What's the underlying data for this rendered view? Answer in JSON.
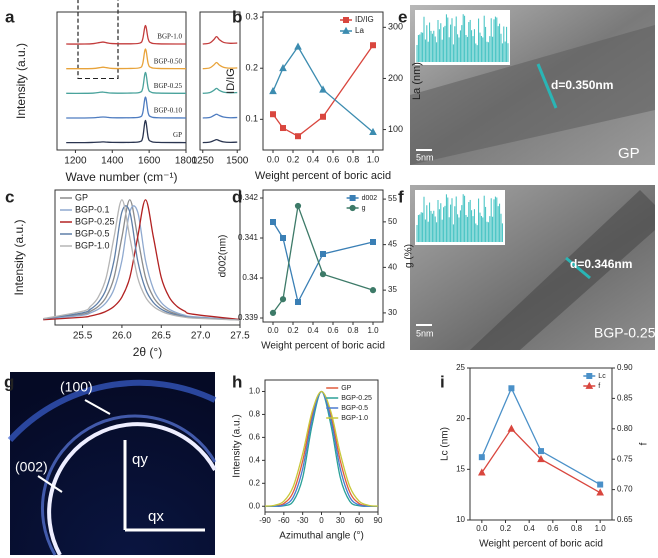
{
  "chart_data": [
    {
      "type": "line",
      "panel": "a",
      "xlabel": "Wave number (cm⁻¹)",
      "ylabel": "Intensity (a.u.)",
      "x": [
        1150,
        1250,
        1300,
        1330,
        1350,
        1370,
        1400,
        1500,
        1550,
        1565,
        1580,
        1595,
        1610,
        1650,
        1800
      ],
      "xlim": [
        1100,
        1800
      ],
      "ylim": [
        -0.3,
        5.3
      ],
      "xticks": [
        1200,
        1400,
        1600,
        1800
      ],
      "legend": "inline",
      "grid": false,
      "series": [
        {
          "name": "GP",
          "color": "#2a3550",
          "values": [
            0,
            0,
            0.01,
            0.02,
            0.03,
            0.02,
            0.01,
            0.01,
            0.04,
            0.2,
            0.9,
            0.2,
            0.05,
            0.01,
            0
          ]
        },
        {
          "name": "BGP-0.10",
          "color": "#4e7cc0",
          "values": [
            1,
            1,
            1.01,
            1.03,
            1.04,
            1.03,
            1.01,
            1.01,
            1.04,
            1.2,
            1.85,
            1.2,
            1.05,
            1.01,
            1
          ]
        },
        {
          "name": "BGP-0.25",
          "color": "#4aa39c",
          "values": [
            2,
            2,
            2.01,
            2.04,
            2.05,
            2.03,
            2.01,
            2.01,
            2.04,
            2.2,
            2.85,
            2.2,
            2.05,
            2.01,
            2
          ]
        },
        {
          "name": "BGP-0.50",
          "color": "#e8a33a",
          "values": [
            3,
            3,
            3.01,
            3.04,
            3.06,
            3.04,
            3.01,
            3.01,
            3.04,
            3.2,
            3.8,
            3.2,
            3.05,
            3.01,
            3
          ]
        },
        {
          "name": "BGP-1.0",
          "color": "#c33c3c",
          "values": [
            4,
            4,
            4.02,
            4.06,
            4.08,
            4.05,
            4.02,
            4.01,
            4.04,
            4.2,
            4.75,
            4.2,
            4.05,
            4.01,
            4
          ]
        }
      ]
    },
    {
      "type": "line",
      "x": [
        1250,
        1300,
        1330,
        1350,
        1370,
        1400,
        1450,
        1500
      ],
      "xlim": [
        1230,
        1520
      ],
      "ylim": [
        -0.3,
        5.3
      ],
      "xticks": [
        1250,
        1500
      ],
      "grid": false,
      "series": [
        {
          "color": "#2a3550",
          "values": [
            0,
            0.02,
            0.08,
            0.12,
            0.08,
            0.03,
            0.01,
            0.02
          ]
        },
        {
          "color": "#4e7cc0",
          "values": [
            1,
            1.02,
            1.1,
            1.15,
            1.1,
            1.04,
            1.01,
            1.02
          ]
        },
        {
          "color": "#4aa39c",
          "values": [
            2,
            2.03,
            2.12,
            2.2,
            2.12,
            2.05,
            2.02,
            2.03
          ]
        },
        {
          "color": "#e8a33a",
          "values": [
            3,
            3.03,
            3.15,
            3.25,
            3.15,
            3.06,
            3.02,
            3.03
          ]
        },
        {
          "color": "#c33c3c",
          "values": [
            4,
            4.04,
            4.18,
            4.3,
            4.18,
            4.07,
            4.03,
            4.04
          ]
        }
      ]
    },
    {
      "type": "line",
      "panel": "b",
      "xlabel": "Weight percent of boric acid",
      "ylabel": "ID/IG",
      "y2label": "La (nm)",
      "x": [
        0,
        0.1,
        0.25,
        0.5,
        1.0
      ],
      "xlim": [
        -0.1,
        1.1
      ],
      "ylim": [
        0.04,
        0.31
      ],
      "y2lim": [
        60,
        330
      ],
      "xticks": [
        {
          "value": 0,
          "label": "0.0"
        },
        0.2,
        0.4,
        0.6,
        0.8,
        {
          "value": 1,
          "label": "1.0"
        }
      ],
      "yticks": [
        0.1,
        0.2,
        0.3
      ],
      "y2ticks": [
        100,
        200,
        300
      ],
      "legend": "upper right",
      "grid": false,
      "series": [
        {
          "name": "ID/IG",
          "color": "#d9463e",
          "marker": "square",
          "values": [
            0.11,
            0.083,
            0.067,
            0.105,
            0.245
          ]
        },
        {
          "name": "La",
          "color": "#3c8cb0",
          "marker": "triangle",
          "axis": "y2",
          "values": [
            175,
            220,
            262,
            178,
            95
          ]
        }
      ]
    },
    {
      "type": "line",
      "panel": "c",
      "xlabel": "2θ (°)",
      "ylabel": "Intensity (a.u.)",
      "x": [
        25.0,
        25.5,
        25.6,
        25.7,
        25.8,
        25.9,
        26.0,
        26.1,
        26.2,
        26.3,
        26.4,
        26.5,
        26.6,
        26.7,
        26.8,
        26.9,
        27.5
      ],
      "xlim": [
        25.15,
        27.5
      ],
      "ylim": [
        -0.03,
        1.08
      ],
      "xticks": [
        25.5,
        {
          "value": 26,
          "label": "26.0"
        },
        26.5,
        {
          "value": 27,
          "label": "27.0"
        },
        27.5
      ],
      "legend": "upper left",
      "grid": false,
      "series": [
        {
          "name": "GP",
          "color": "#8c8c8c",
          "values": [
            0.018,
            0.059,
            0.083,
            0.123,
            0.2,
            0.36,
            0.692,
            1,
            0.692,
            0.36,
            0.2,
            0.123,
            0.083,
            0.059,
            0.044,
            0.034,
            0.011
          ]
        },
        {
          "name": "BGP-0.1",
          "color": "#8fa9cf",
          "values": [
            0.017,
            0.05,
            0.07,
            0.1,
            0.155,
            0.265,
            0.5,
            0.9,
            0.9,
            0.5,
            0.265,
            0.155,
            0.1,
            0.07,
            0.05,
            0.039,
            0.012
          ]
        },
        {
          "name": "BGP-0.25",
          "color": "#b22222",
          "values": [
            0.013,
            0.034,
            0.044,
            0.059,
            0.083,
            0.123,
            0.2,
            0.36,
            0.692,
            1,
            0.692,
            0.36,
            0.2,
            0.123,
            0.083,
            0.059,
            0.015
          ]
        },
        {
          "name": "BGP-0.5",
          "color": "#5f7fa8",
          "values": [
            0.02,
            0.07,
            0.1,
            0.155,
            0.265,
            0.5,
            0.9,
            0.9,
            0.5,
            0.265,
            0.155,
            0.1,
            0.07,
            0.05,
            0.039,
            0.03,
            0.011
          ]
        },
        {
          "name": "BGP-1.0",
          "color": "#b5b5b5",
          "values": [
            0.022,
            0.083,
            0.123,
            0.2,
            0.36,
            0.692,
            1,
            0.692,
            0.36,
            0.2,
            0.123,
            0.083,
            0.059,
            0.044,
            0.034,
            0.027,
            0.01
          ]
        }
      ]
    },
    {
      "type": "line",
      "panel": "d",
      "xlabel": "Weight percent of boric acid",
      "ylabel": "d002(nm)",
      "y2label": "g (%)",
      "x": [
        0,
        0.1,
        0.25,
        0.5,
        1.0
      ],
      "xlim": [
        -0.1,
        1.1
      ],
      "ylim": [
        0.3389,
        0.3422
      ],
      "y2lim": [
        28,
        57
      ],
      "xticks": [
        {
          "value": 0,
          "label": "0.0"
        },
        0.2,
        0.4,
        0.6,
        0.8,
        {
          "value": 1,
          "label": "1.0"
        }
      ],
      "yticks": [
        0.339,
        0.34,
        0.341,
        0.342
      ],
      "y2ticks": [
        30,
        35,
        40,
        45,
        50,
        55
      ],
      "legend": "upper right",
      "grid": false,
      "series": [
        {
          "name": "d002",
          "color": "#3a7fb5",
          "marker": "square",
          "values": [
            0.3414,
            0.341,
            0.3394,
            0.3406,
            0.3409
          ]
        },
        {
          "name": "g",
          "color": "#3d7a68",
          "marker": "circle",
          "axis": "y2",
          "values": [
            30,
            33,
            53.5,
            38.5,
            35
          ]
        }
      ]
    },
    {
      "type": "line",
      "panel": "h",
      "xlabel": "Azimuthal angle (°)",
      "ylabel": "Intensity (a.u.)",
      "x": [
        -90,
        -75,
        -60,
        -45,
        -30,
        -15,
        0,
        15,
        30,
        45,
        60,
        75,
        90
      ],
      "xlim": [
        -90,
        90
      ],
      "ylim": [
        -0.05,
        1.1
      ],
      "xticks": [
        -90,
        -60,
        -30,
        0,
        30,
        60,
        90
      ],
      "yticks": [
        {
          "value": 0,
          "label": "0.0"
        },
        0.2,
        0.4,
        0.6,
        0.8,
        {
          "value": 1,
          "label": "1.0"
        }
      ],
      "legend": "upper right",
      "grid": false,
      "series": [
        {
          "name": "GP",
          "color": "#e15b3c",
          "values": [
            0,
            0.003,
            0.024,
            0.124,
            0.395,
            0.79,
            1,
            0.79,
            0.395,
            0.124,
            0.024,
            0.003,
            0
          ]
        },
        {
          "name": "BGP-0.25",
          "color": "#2aa198",
          "values": [
            0,
            0,
            0.004,
            0.044,
            0.249,
            0.707,
            1,
            0.707,
            0.249,
            0.044,
            0.004,
            0,
            0
          ]
        },
        {
          "name": "BGP-0.5",
          "color": "#4a7bd0",
          "values": [
            0,
            0.001,
            0.011,
            0.08,
            0.325,
            0.755,
            1,
            0.755,
            0.325,
            0.08,
            0.011,
            0.001,
            0
          ]
        },
        {
          "name": "BGP-1.0",
          "color": "#c8c83a",
          "values": [
            0.001,
            0.008,
            0.044,
            0.172,
            0.458,
            0.823,
            1,
            0.823,
            0.458,
            0.172,
            0.044,
            0.008,
            0.001
          ]
        }
      ]
    },
    {
      "type": "line",
      "panel": "i",
      "xlabel": "Weight percent of boric acid",
      "ylabel": "Lc (nm)",
      "y2label": "f",
      "x": [
        0,
        0.25,
        0.5,
        1.0
      ],
      "xlim": [
        -0.1,
        1.1
      ],
      "ylim": [
        10,
        25
      ],
      "y2lim": [
        0.65,
        0.9
      ],
      "xticks": [
        {
          "value": 0,
          "label": "0.0"
        },
        0.2,
        0.4,
        0.6,
        0.8,
        {
          "value": 1,
          "label": "1.0"
        }
      ],
      "yticks": [
        10,
        15,
        20,
        25
      ],
      "y2ticks": [
        0.65,
        {
          "value": 0.7,
          "label": "0.70"
        },
        0.75,
        {
          "value": 0.8,
          "label": "0.80"
        },
        0.85,
        {
          "value": 0.9,
          "label": "0.90"
        }
      ],
      "legend": "upper right",
      "grid": false,
      "series": [
        {
          "name": "Lc",
          "color": "#4a90c8",
          "marker": "square",
          "values": [
            16.2,
            23.0,
            16.8,
            13.5
          ]
        },
        {
          "name": "f",
          "color": "#d9463e",
          "marker": "triangle",
          "axis": "y2",
          "values": [
            0.728,
            0.8,
            0.75,
            0.695
          ]
        }
      ]
    }
  ],
  "images": [
    {
      "panel": "e",
      "d_spacing": "d=0.350nm",
      "scale": "5nm",
      "sample": "GP"
    },
    {
      "panel": "f",
      "d_spacing": "d=0.346nm",
      "scale": "5nm",
      "sample": "BGP-0.25"
    },
    {
      "panel": "g",
      "labels": [
        "(100)",
        "(002)",
        "qy",
        "qx"
      ]
    }
  ]
}
